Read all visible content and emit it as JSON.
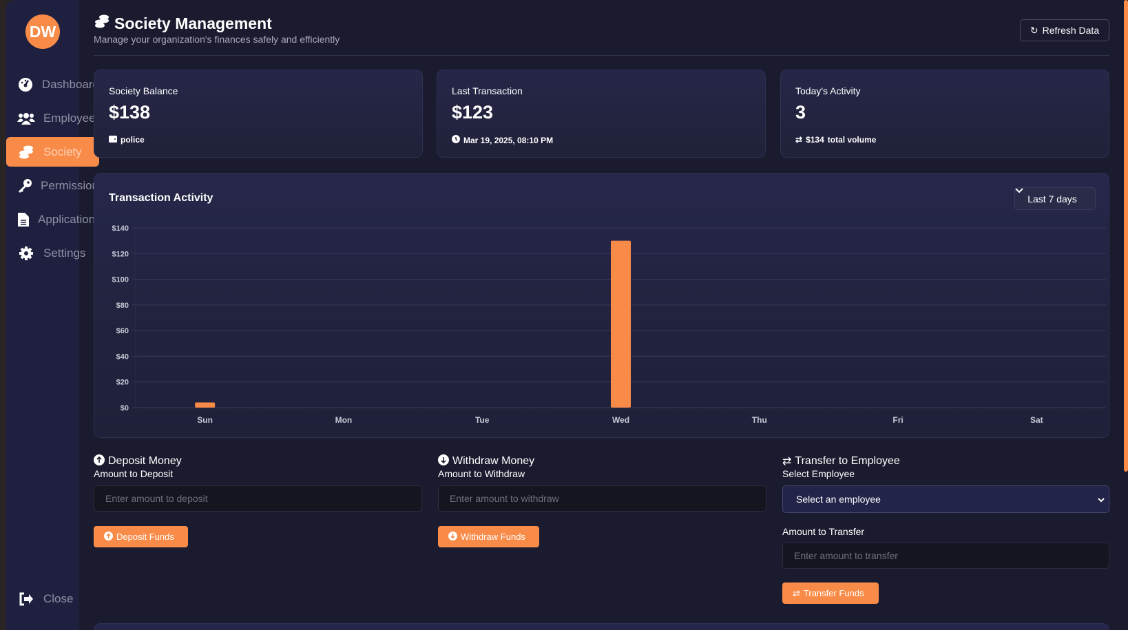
{
  "sidebar": {
    "avatar": "DW",
    "items": [
      {
        "label": "Dashboard",
        "icon": "gauge-icon"
      },
      {
        "label": "Employees",
        "icon": "users-icon"
      },
      {
        "label": "Society",
        "icon": "coins-icon",
        "active": true
      },
      {
        "label": "Permissions",
        "icon": "key-icon"
      },
      {
        "label": "Applications",
        "icon": "file-icon"
      },
      {
        "label": "Settings",
        "icon": "gear-icon"
      }
    ],
    "close": "Close"
  },
  "header": {
    "title": "Society Management",
    "subtitle": "Manage your organization's finances safely and efficiently",
    "refresh": "Refresh Data"
  },
  "stats": [
    {
      "label": "Society Balance",
      "value": "$138",
      "sub": "police",
      "icon": "wallet-icon"
    },
    {
      "label": "Last Transaction",
      "value": "$123",
      "sub": "Mar 19, 2025, 08:10 PM",
      "icon": "clock-icon"
    },
    {
      "label": "Today's Activity",
      "value": "3",
      "sub_amount": "$134",
      "sub": "total volume",
      "icon": "exchange-icon"
    }
  ],
  "chart": {
    "title": "Transaction Activity",
    "range": "Last 7 days"
  },
  "chart_data": {
    "type": "bar",
    "categories": [
      "Sun",
      "Mon",
      "Tue",
      "Wed",
      "Thu",
      "Fri",
      "Sat"
    ],
    "values": [
      4,
      0,
      0,
      130,
      0,
      0,
      0
    ],
    "ylim": [
      0,
      140
    ],
    "yticks": [
      "$0",
      "$20",
      "$40",
      "$60",
      "$80",
      "$100",
      "$120",
      "$140"
    ],
    "grid": true,
    "color": "#f98b48"
  },
  "deposit": {
    "title": "Deposit Money",
    "label": "Amount to Deposit",
    "placeholder": "Enter amount to deposit",
    "button": "Deposit Funds"
  },
  "withdraw": {
    "title": "Withdraw Money",
    "label": "Amount to Withdraw",
    "placeholder": "Enter amount to withdraw",
    "button": "Withdraw Funds"
  },
  "transfer": {
    "title": "Transfer to Employee",
    "select_label": "Select Employee",
    "select_value": "Select an employee",
    "amount_label": "Amount to Transfer",
    "placeholder": "Enter amount to transfer",
    "button": "Transfer Funds"
  },
  "colors": {
    "accent": "#f98b48",
    "background": "#1a1b2e",
    "card": "#22233f"
  }
}
